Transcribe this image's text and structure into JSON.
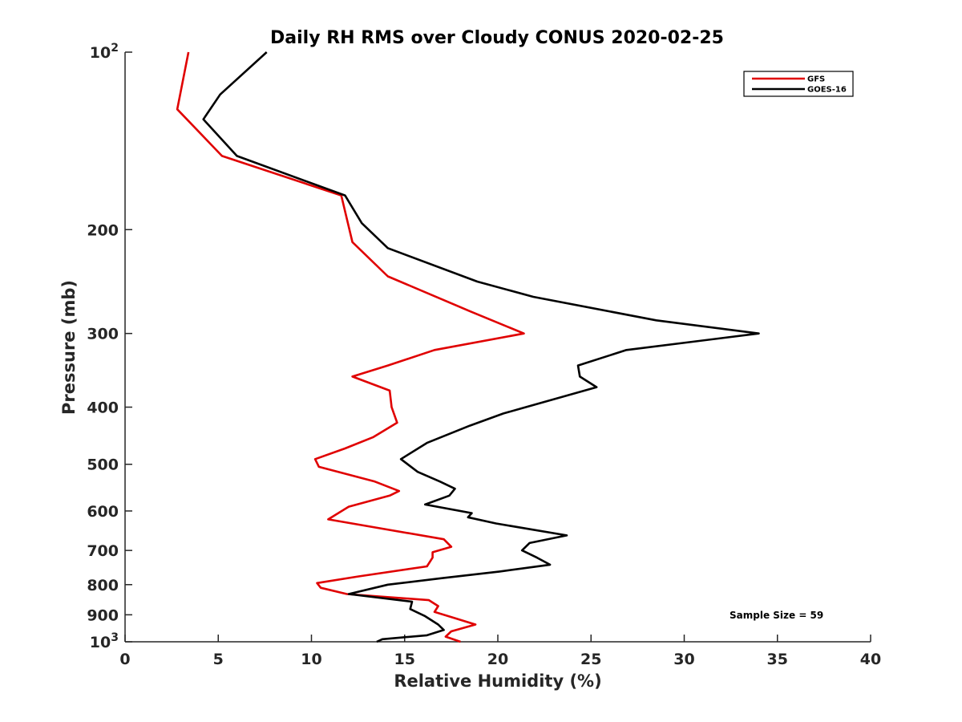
{
  "chart_data": {
    "type": "line",
    "title": "Daily RH RMS over Cloudy CONUS 2020-02-25",
    "xlabel": "Relative Humidity (%)",
    "ylabel": "Pressure (mb)",
    "xlim": [
      0,
      40
    ],
    "ylim": [
      100,
      1000
    ],
    "y_scale": "log",
    "y_reversed": true,
    "xticks": [
      0,
      5,
      10,
      15,
      20,
      25,
      30,
      35,
      40
    ],
    "yticks": [
      {
        "value": 100,
        "base": "10",
        "exp": "2"
      },
      {
        "value": 200,
        "label": "200"
      },
      {
        "value": 300,
        "label": "300"
      },
      {
        "value": 400,
        "label": "400"
      },
      {
        "value": 500,
        "label": "500"
      },
      {
        "value": 600,
        "label": "600"
      },
      {
        "value": 700,
        "label": "700"
      },
      {
        "value": 800,
        "label": "800"
      },
      {
        "value": 900,
        "label": "900"
      },
      {
        "value": 1000,
        "base": "10",
        "exp": "3"
      }
    ],
    "grid": false,
    "legend_position": "top-right",
    "annotation": "Sample Size = 59",
    "series": [
      {
        "name": "GFS",
        "color": "#e00000",
        "points": [
          [
            3.4,
            100
          ],
          [
            2.8,
            125
          ],
          [
            5.2,
            150
          ],
          [
            11.6,
            175
          ],
          [
            12.2,
            210
          ],
          [
            14.1,
            240
          ],
          [
            18.5,
            275
          ],
          [
            21.4,
            300
          ],
          [
            16.6,
            320
          ],
          [
            14.1,
            340
          ],
          [
            12.2,
            355
          ],
          [
            14.2,
            375
          ],
          [
            14.3,
            400
          ],
          [
            14.6,
            425
          ],
          [
            13.3,
            450
          ],
          [
            11.8,
            470
          ],
          [
            10.2,
            490
          ],
          [
            10.4,
            505
          ],
          [
            13.4,
            535
          ],
          [
            14.7,
            555
          ],
          [
            14.2,
            565
          ],
          [
            12.0,
            590
          ],
          [
            10.9,
            620
          ],
          [
            17.1,
            670
          ],
          [
            17.5,
            690
          ],
          [
            16.5,
            705
          ],
          [
            16.5,
            720
          ],
          [
            16.2,
            745
          ],
          [
            12.5,
            775
          ],
          [
            10.3,
            795
          ],
          [
            10.5,
            810
          ],
          [
            11.9,
            830
          ],
          [
            16.3,
            850
          ],
          [
            16.8,
            870
          ],
          [
            16.6,
            890
          ],
          [
            17.6,
            910
          ],
          [
            18.8,
            935
          ],
          [
            17.5,
            960
          ],
          [
            17.2,
            980
          ],
          [
            18.0,
            1000
          ]
        ]
      },
      {
        "name": "GOES-16",
        "color": "#000000",
        "points": [
          [
            7.6,
            100
          ],
          [
            5.1,
            118
          ],
          [
            4.2,
            130
          ],
          [
            6.0,
            150
          ],
          [
            11.8,
            175
          ],
          [
            12.7,
            195
          ],
          [
            14.1,
            215
          ],
          [
            18.9,
            245
          ],
          [
            21.9,
            260
          ],
          [
            28.5,
            285
          ],
          [
            34.0,
            300
          ],
          [
            26.9,
            320
          ],
          [
            24.3,
            340
          ],
          [
            24.4,
            355
          ],
          [
            25.3,
            370
          ],
          [
            20.3,
            410
          ],
          [
            18.5,
            430
          ],
          [
            16.2,
            460
          ],
          [
            14.8,
            490
          ],
          [
            15.7,
            515
          ],
          [
            16.9,
            535
          ],
          [
            17.7,
            550
          ],
          [
            17.4,
            565
          ],
          [
            16.1,
            585
          ],
          [
            18.6,
            605
          ],
          [
            18.4,
            615
          ],
          [
            19.9,
            630
          ],
          [
            23.7,
            660
          ],
          [
            21.7,
            680
          ],
          [
            21.3,
            700
          ],
          [
            22.1,
            720
          ],
          [
            22.8,
            740
          ],
          [
            20.1,
            760
          ],
          [
            17.0,
            780
          ],
          [
            14.1,
            800
          ],
          [
            12.0,
            830
          ],
          [
            15.4,
            855
          ],
          [
            15.3,
            880
          ],
          [
            16.1,
            905
          ],
          [
            16.8,
            935
          ],
          [
            17.1,
            955
          ],
          [
            16.2,
            975
          ],
          [
            13.8,
            990
          ],
          [
            13.5,
            1000
          ]
        ]
      }
    ]
  }
}
